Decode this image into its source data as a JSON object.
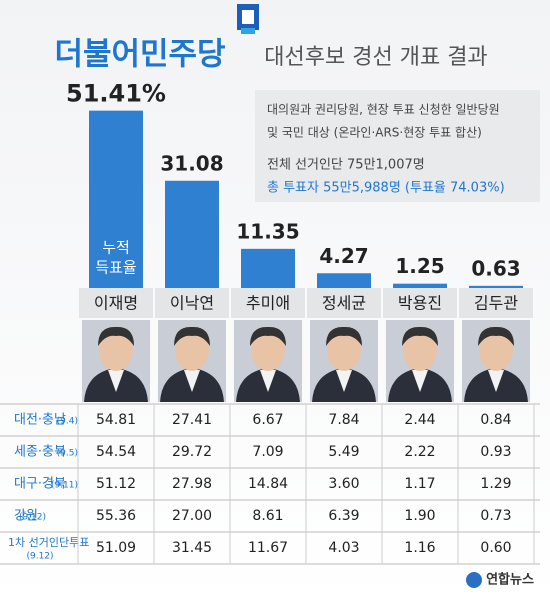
{
  "chart_data": {
    "type": "bar",
    "title": "더불어민주당",
    "subtitle": "대선후보 경선 개표 결과",
    "categories": [
      "이재명",
      "이낙연",
      "추미애",
      "정세균",
      "박용진",
      "김두관"
    ],
    "values": [
      51.41,
      31.08,
      11.35,
      4.27,
      1.25,
      0.63
    ],
    "value_labels": [
      "51.41%",
      "31.08",
      "11.35",
      "4.27",
      "1.25",
      "0.63"
    ],
    "color": "#2f80d1",
    "bar_annotation": [
      "누적",
      "득표율"
    ],
    "info": [
      "대의원과 권리당원, 현장 투표 신청한 일반당원",
      "및 국민 대상 (온라인·ARS·현장 투표 합산)",
      "전체 선거인단 75만1,007명",
      "총 투표자 55만5,988명 (투표율 74.03%)"
    ]
  },
  "table": {
    "rows": [
      {
        "label": "대전·충남",
        "date": "(9.4)",
        "values": [
          "54.81",
          "27.41",
          "6.67",
          "7.84",
          "2.44",
          "0.84"
        ]
      },
      {
        "label": "세종·충북",
        "date": "(9.5)",
        "values": [
          "54.54",
          "29.72",
          "7.09",
          "5.49",
          "2.22",
          "0.93"
        ]
      },
      {
        "label": "대구·경북",
        "date": "(9.11)",
        "values": [
          "51.12",
          "27.98",
          "14.84",
          "3.60",
          "1.17",
          "1.29"
        ]
      },
      {
        "label": "강원",
        "date": "(9.12)",
        "values": [
          "55.36",
          "27.00",
          "8.61",
          "6.39",
          "1.90",
          "0.73"
        ]
      },
      {
        "label": "1차 선거인단투표",
        "date": "(9.12)",
        "values": [
          "51.09",
          "31.45",
          "11.67",
          "4.03",
          "1.16",
          "0.60"
        ]
      }
    ]
  },
  "footer": "연합뉴스"
}
